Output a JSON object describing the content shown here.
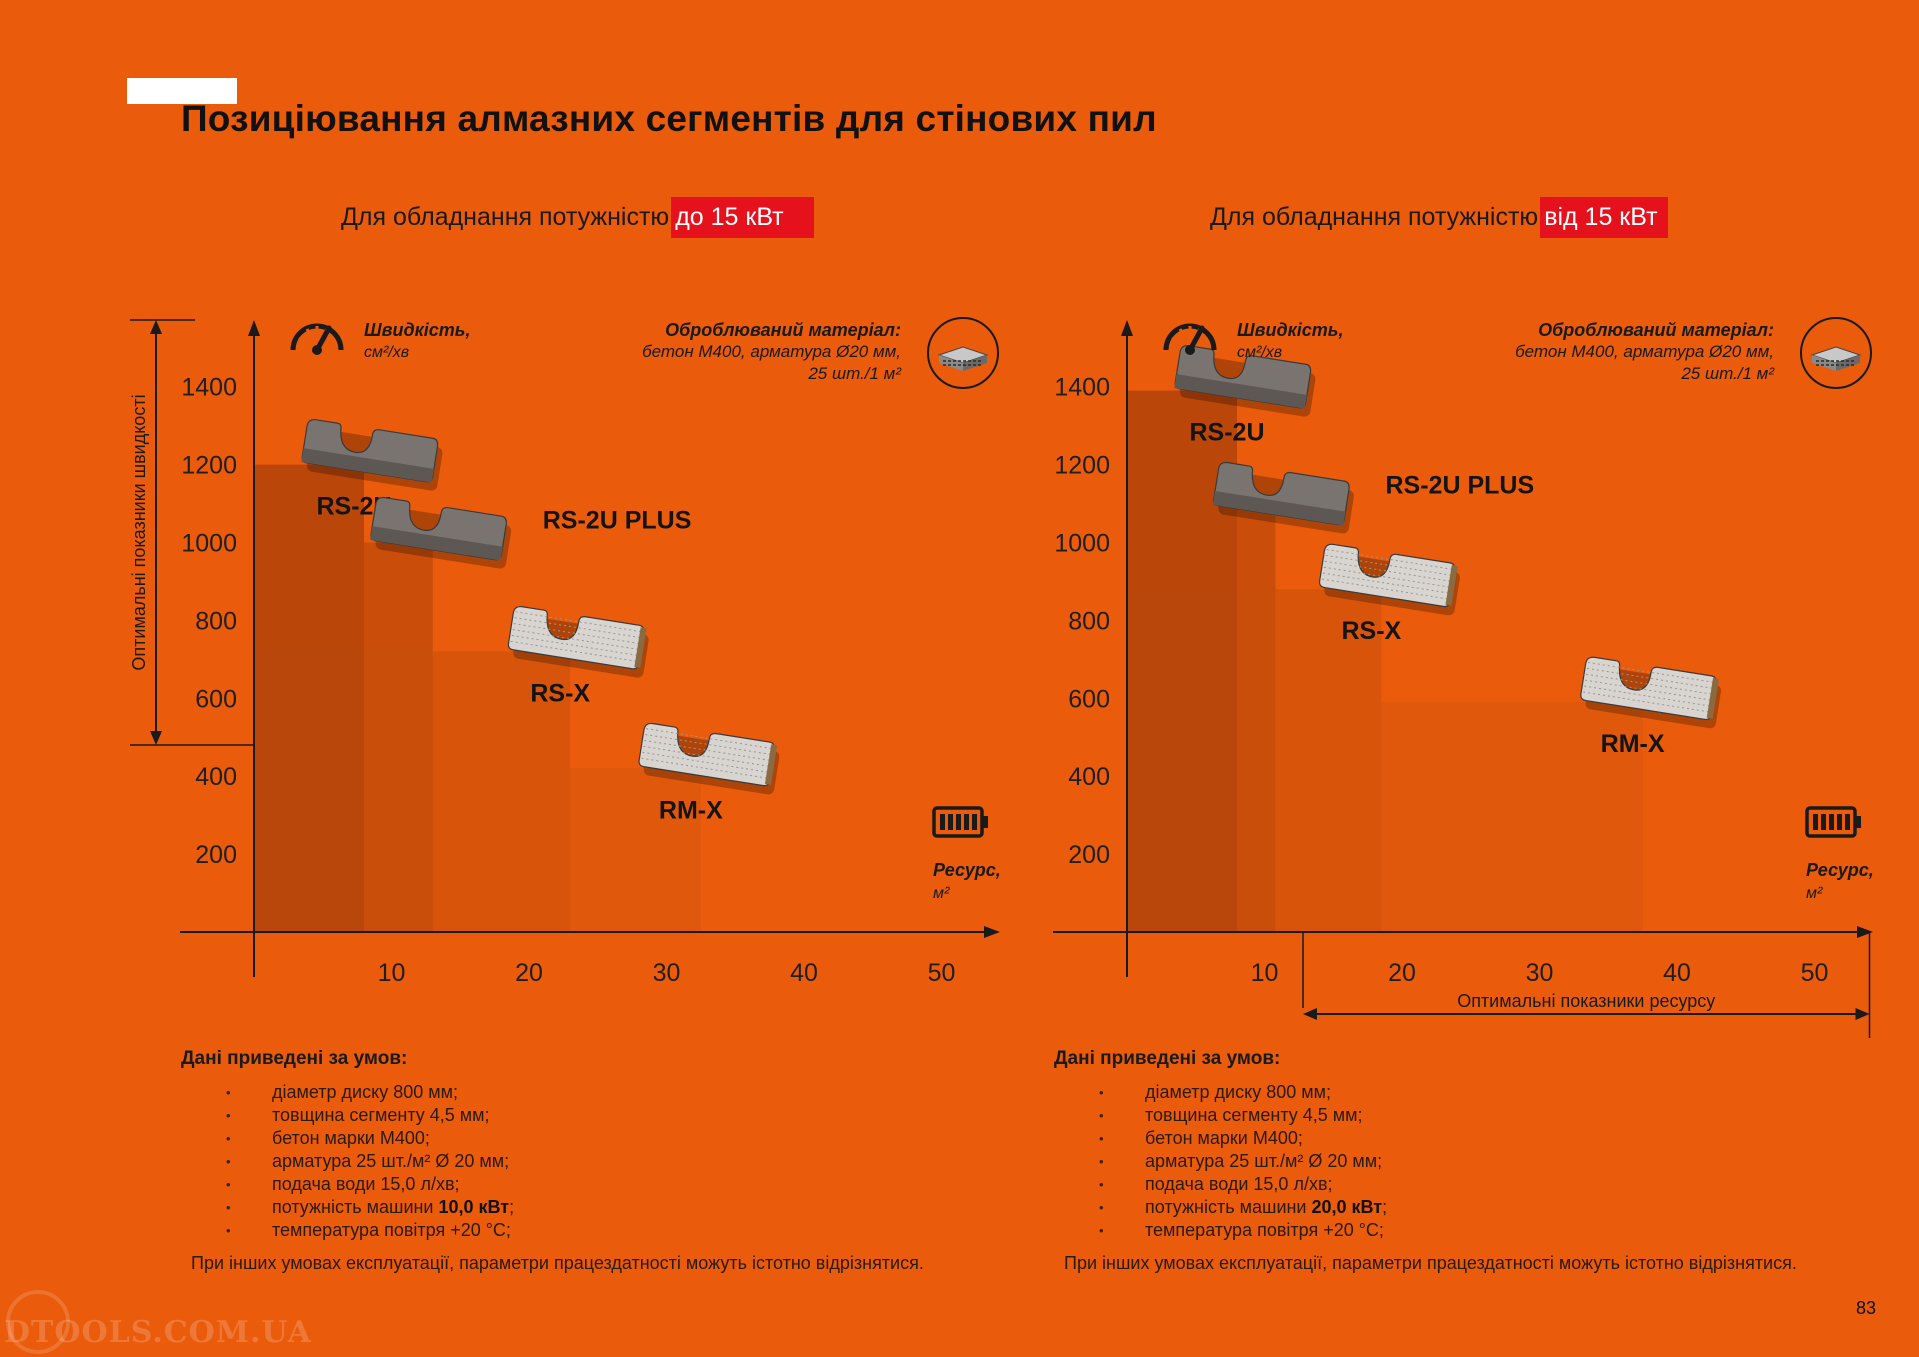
{
  "page": {
    "title": "Позиціювання алмазних сегментів для стінових пил",
    "page_number": "83",
    "watermark": "DTOOLS.COM.UA"
  },
  "colors": {
    "background": "#ea5b0c",
    "highlight": "#e5121e",
    "bar_dark": "#a83e0a"
  },
  "panels": [
    {
      "subtitle": "Для обладнання потужністю",
      "subtitle_highlight": "до 15 кВт",
      "speed_label": "Швидкість,",
      "speed_unit": "см²/хв",
      "material_title": "Оброблюваний матеріал:",
      "material_line1": "бетон М400, арматура Ø20 мм,",
      "material_line2": "25 шт./1 м²",
      "resource_label": "Ресурс,",
      "resource_unit": "м²",
      "vertical_bracket_label": "Оптимальні показники швидкості",
      "conditions_title": "Дані приведені за умов:",
      "conditions": [
        {
          "text": "діаметр диску 800 мм;",
          "bold": ""
        },
        {
          "text": "товщина сегменту 4,5 мм;",
          "bold": ""
        },
        {
          "text": "бетон марки М400;",
          "bold": ""
        },
        {
          "text": "арматура 25 шт./м² Ø 20 мм;",
          "bold": ""
        },
        {
          "text": "подача води 15,0 л/хв;",
          "bold": ""
        },
        {
          "text": "потужність машини ",
          "bold": "10,0 кВт",
          "after": ";"
        },
        {
          "text": "температура повітря +20 °С;",
          "bold": ""
        }
      ],
      "note": "При інших умовах експлуатації, параметри працездатності можуть істотно відрізнятися."
    },
    {
      "subtitle": "Для обладнання потужністю",
      "subtitle_highlight": "від 15 кВт",
      "speed_label": "Швидкість,",
      "speed_unit": "см²/хв",
      "material_title": "Оброблюваний матеріал:",
      "material_line1": "бетон М400, арматура Ø20 мм,",
      "material_line2": "25 шт./1 м²",
      "resource_label": "Ресурс,",
      "resource_unit": "м²",
      "horizontal_bracket_label": "Оптимальні показники ресурсу",
      "conditions_title": "Дані приведені за умов:",
      "conditions": [
        {
          "text": "діаметр диску 800 мм;",
          "bold": ""
        },
        {
          "text": "товщина сегменту 4,5 мм;",
          "bold": ""
        },
        {
          "text": "бетон марки М400;",
          "bold": ""
        },
        {
          "text": "арматура 25 шт./м² Ø 20 мм;",
          "bold": ""
        },
        {
          "text": "подача води 15,0 л/хв;",
          "bold": ""
        },
        {
          "text": "потужність машини ",
          "bold": "20,0 кВт",
          "after": ";"
        },
        {
          "text": "температура повітря +20 °С;",
          "bold": ""
        }
      ],
      "note": "При інших умовах експлуатації, параметри працездатності можуть істотно відрізнятися."
    }
  ],
  "chart_data": [
    {
      "type": "bar",
      "x_ticks": [
        10,
        20,
        30,
        40,
        50
      ],
      "y_ticks": [
        200,
        400,
        600,
        800,
        1000,
        1200,
        1400
      ],
      "xlim": [
        0,
        53
      ],
      "ylim": [
        0,
        1500
      ],
      "optimal_speed_range": [
        480,
        1570
      ],
      "series": [
        {
          "name": "RS-2U",
          "speed": 1200,
          "resource": 8,
          "segment_style": "solid"
        },
        {
          "name": "RS-2U PLUS",
          "speed": 1000,
          "resource": 13,
          "segment_style": "solid"
        },
        {
          "name": "RS-X",
          "speed": 720,
          "resource": 23,
          "segment_style": "mesh"
        },
        {
          "name": "RM-X",
          "speed": 420,
          "resource": 32.5,
          "segment_style": "mesh"
        }
      ]
    },
    {
      "type": "bar",
      "x_ticks": [
        10,
        20,
        30,
        40,
        50
      ],
      "y_ticks": [
        200,
        400,
        600,
        800,
        1000,
        1200,
        1400
      ],
      "xlim": [
        0,
        54
      ],
      "ylim": [
        0,
        1500
      ],
      "optimal_resource_range": [
        12.8,
        54
      ],
      "series": [
        {
          "name": "RS-2U",
          "speed": 1390,
          "resource": 8,
          "segment_style": "solid"
        },
        {
          "name": "RS-2U PLUS",
          "speed": 1090,
          "resource": 10.8,
          "segment_style": "solid"
        },
        {
          "name": "RS-X",
          "speed": 880,
          "resource": 18.5,
          "segment_style": "mesh"
        },
        {
          "name": "RM-X",
          "speed": 590,
          "resource": 37.5,
          "segment_style": "mesh"
        }
      ]
    }
  ]
}
